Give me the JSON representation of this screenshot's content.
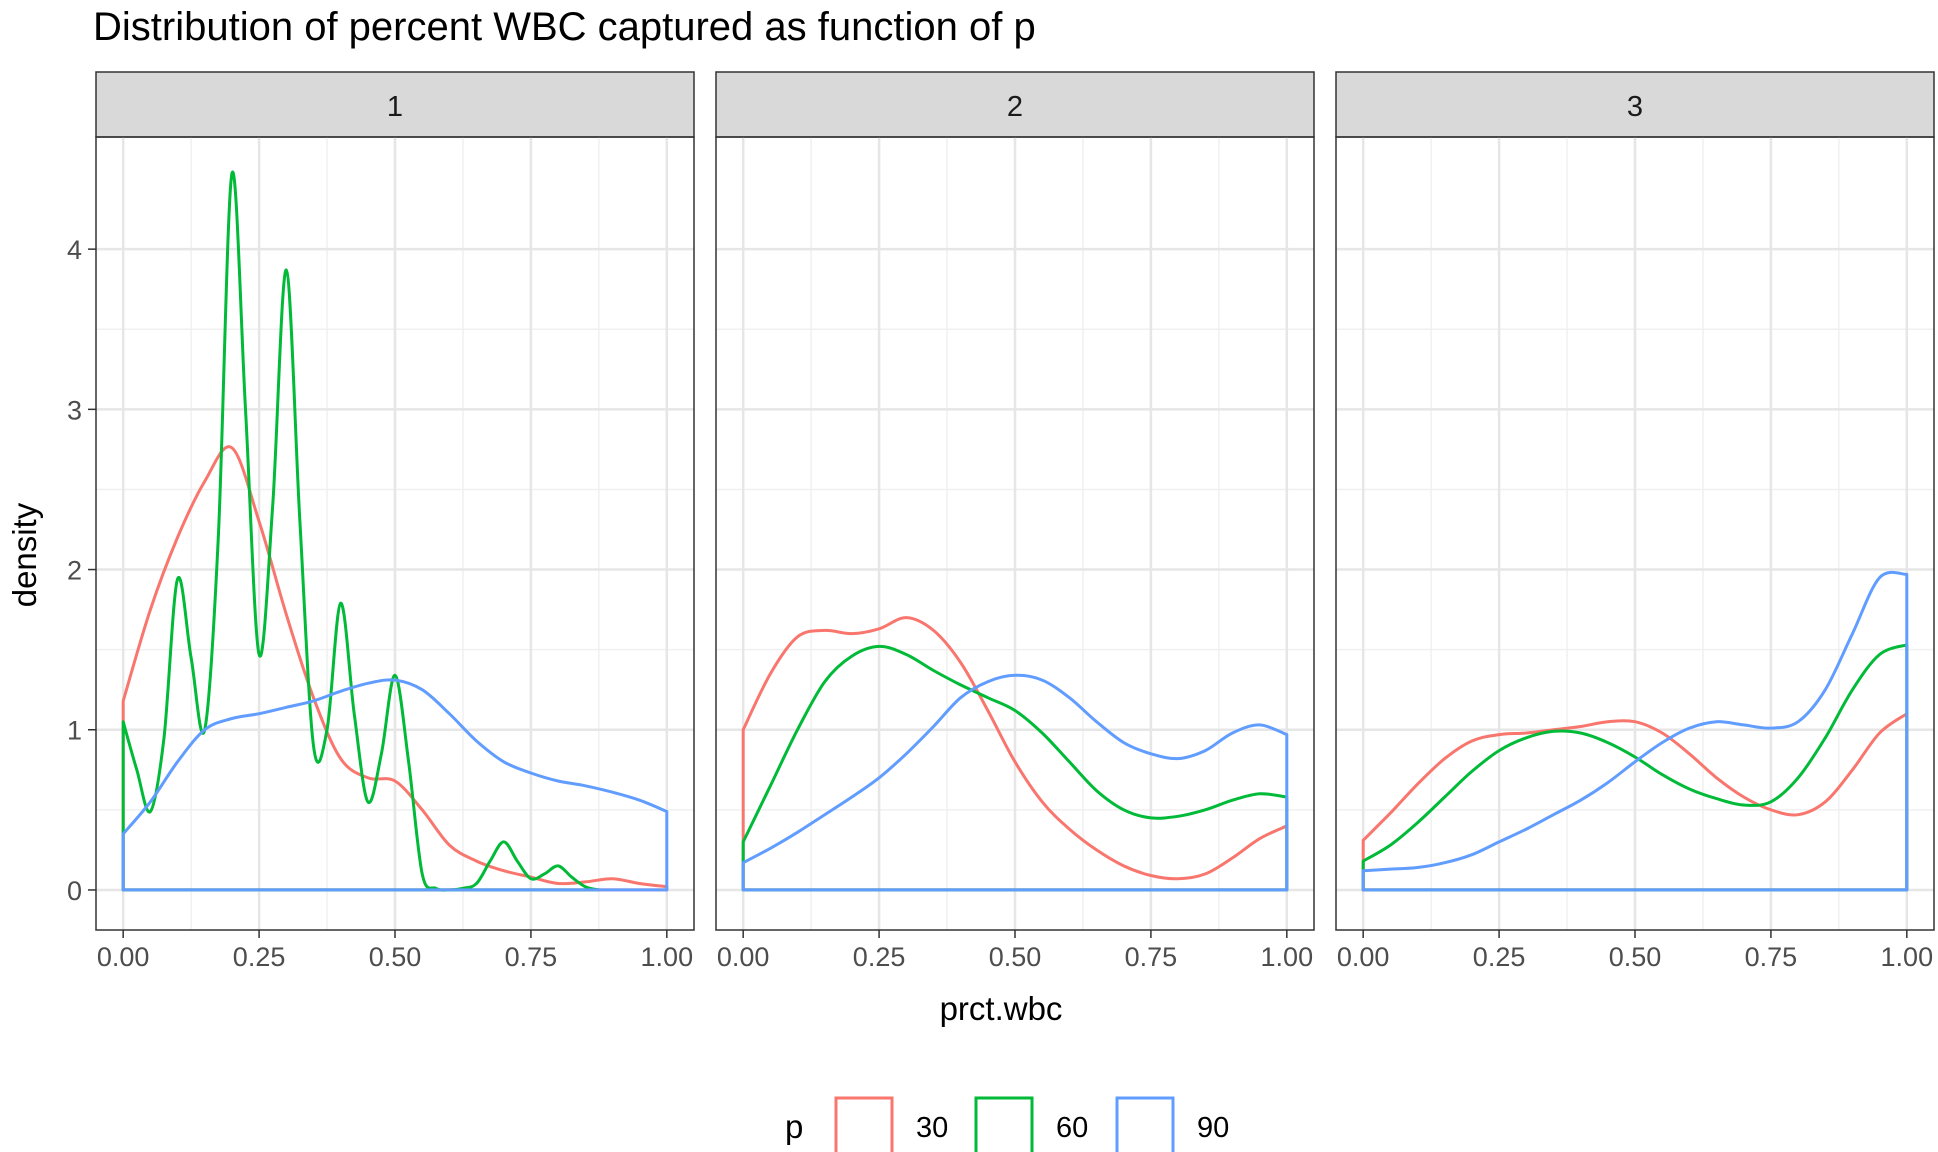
{
  "chart_data": {
    "type": "line",
    "title": "Distribution of percent WBC captured as function of p",
    "xlabel": "prct.wbc",
    "ylabel": "density",
    "xlim": [
      -0.05,
      1.05
    ],
    "ylim": [
      -0.25,
      4.7
    ],
    "x_ticks": [
      0,
      0.25,
      0.5,
      0.75,
      1
    ],
    "x_tick_labels": [
      "0.00",
      "0.25",
      "0.50",
      "0.75",
      "1.00"
    ],
    "y_ticks": [
      0,
      1,
      2,
      3,
      4
    ],
    "y_tick_labels": [
      "0",
      "1",
      "2",
      "3",
      "4"
    ],
    "grid": true,
    "legend": {
      "title": "p",
      "position": "bottom"
    },
    "facets": [
      {
        "label": "1",
        "series": [
          {
            "name": "30",
            "color": "#F8766D",
            "x": [
              0,
              0.05,
              0.1,
              0.15,
              0.2,
              0.25,
              0.3,
              0.35,
              0.4,
              0.45,
              0.5,
              0.55,
              0.6,
              0.65,
              0.7,
              0.75,
              0.8,
              0.85,
              0.9,
              0.95,
              1.0
            ],
            "y": [
              1.18,
              1.75,
              2.2,
              2.55,
              2.76,
              2.3,
              1.72,
              1.2,
              0.82,
              0.7,
              0.68,
              0.5,
              0.28,
              0.18,
              0.12,
              0.08,
              0.04,
              0.05,
              0.07,
              0.04,
              0.02
            ]
          },
          {
            "name": "60",
            "color": "#00BA38",
            "x": [
              0,
              0.025,
              0.05,
              0.075,
              0.1,
              0.125,
              0.15,
              0.175,
              0.2,
              0.225,
              0.25,
              0.275,
              0.3,
              0.325,
              0.35,
              0.375,
              0.4,
              0.425,
              0.45,
              0.475,
              0.5,
              0.525,
              0.55,
              0.575,
              0.6,
              0.625,
              0.65,
              0.675,
              0.7,
              0.725,
              0.75,
              0.775,
              0.8,
              0.825,
              0.85,
              0.875
            ],
            "y": [
              1.05,
              0.75,
              0.49,
              0.95,
              1.94,
              1.45,
              1.0,
              2.2,
              4.47,
              3.0,
              1.47,
              2.4,
              3.87,
              2.3,
              0.9,
              1.0,
              1.79,
              1.1,
              0.55,
              0.85,
              1.34,
              0.8,
              0.1,
              0.01,
              0.0,
              0.01,
              0.04,
              0.18,
              0.3,
              0.18,
              0.07,
              0.1,
              0.15,
              0.08,
              0.02,
              0.0
            ]
          },
          {
            "name": "90",
            "color": "#619CFF",
            "x": [
              0,
              0.05,
              0.1,
              0.15,
              0.2,
              0.25,
              0.3,
              0.35,
              0.4,
              0.45,
              0.5,
              0.55,
              0.6,
              0.65,
              0.7,
              0.75,
              0.8,
              0.85,
              0.9,
              0.95,
              1.0
            ],
            "y": [
              0.35,
              0.55,
              0.8,
              1.0,
              1.07,
              1.1,
              1.14,
              1.18,
              1.24,
              1.29,
              1.31,
              1.25,
              1.1,
              0.93,
              0.8,
              0.73,
              0.68,
              0.65,
              0.61,
              0.56,
              0.49
            ]
          }
        ]
      },
      {
        "label": "2",
        "series": [
          {
            "name": "30",
            "color": "#F8766D",
            "x": [
              0,
              0.05,
              0.1,
              0.15,
              0.2,
              0.25,
              0.3,
              0.35,
              0.4,
              0.45,
              0.5,
              0.55,
              0.6,
              0.65,
              0.7,
              0.75,
              0.8,
              0.85,
              0.9,
              0.95,
              1.0
            ],
            "y": [
              1.0,
              1.35,
              1.58,
              1.62,
              1.6,
              1.63,
              1.7,
              1.62,
              1.42,
              1.12,
              0.8,
              0.55,
              0.38,
              0.25,
              0.15,
              0.09,
              0.07,
              0.1,
              0.2,
              0.32,
              0.4
            ]
          },
          {
            "name": "60",
            "color": "#00BA38",
            "x": [
              0,
              0.05,
              0.1,
              0.15,
              0.2,
              0.25,
              0.3,
              0.35,
              0.4,
              0.45,
              0.5,
              0.55,
              0.6,
              0.65,
              0.7,
              0.75,
              0.8,
              0.85,
              0.9,
              0.95,
              1.0
            ],
            "y": [
              0.3,
              0.65,
              1.0,
              1.3,
              1.46,
              1.52,
              1.47,
              1.37,
              1.28,
              1.2,
              1.12,
              0.98,
              0.8,
              0.62,
              0.5,
              0.45,
              0.46,
              0.5,
              0.56,
              0.6,
              0.58
            ]
          },
          {
            "name": "90",
            "color": "#619CFF",
            "x": [
              0,
              0.05,
              0.1,
              0.15,
              0.2,
              0.25,
              0.3,
              0.35,
              0.4,
              0.45,
              0.5,
              0.55,
              0.6,
              0.65,
              0.7,
              0.75,
              0.8,
              0.85,
              0.9,
              0.95,
              1.0
            ],
            "y": [
              0.17,
              0.26,
              0.36,
              0.47,
              0.58,
              0.7,
              0.85,
              1.02,
              1.2,
              1.3,
              1.34,
              1.31,
              1.2,
              1.05,
              0.92,
              0.85,
              0.82,
              0.87,
              0.98,
              1.03,
              0.97
            ]
          }
        ]
      },
      {
        "label": "3",
        "series": [
          {
            "name": "30",
            "color": "#F8766D",
            "x": [
              0,
              0.05,
              0.1,
              0.15,
              0.2,
              0.25,
              0.3,
              0.35,
              0.4,
              0.45,
              0.5,
              0.55,
              0.6,
              0.65,
              0.7,
              0.75,
              0.8,
              0.85,
              0.9,
              0.95,
              1.0
            ],
            "y": [
              0.31,
              0.48,
              0.66,
              0.82,
              0.93,
              0.97,
              0.98,
              1.0,
              1.02,
              1.05,
              1.05,
              0.98,
              0.85,
              0.7,
              0.58,
              0.5,
              0.47,
              0.55,
              0.75,
              0.98,
              1.1
            ]
          },
          {
            "name": "60",
            "color": "#00BA38",
            "x": [
              0,
              0.05,
              0.1,
              0.15,
              0.2,
              0.25,
              0.3,
              0.35,
              0.4,
              0.45,
              0.5,
              0.55,
              0.6,
              0.65,
              0.7,
              0.75,
              0.8,
              0.85,
              0.9,
              0.95,
              1.0
            ],
            "y": [
              0.18,
              0.28,
              0.42,
              0.58,
              0.74,
              0.87,
              0.95,
              0.99,
              0.98,
              0.92,
              0.83,
              0.72,
              0.63,
              0.57,
              0.53,
              0.55,
              0.7,
              0.95,
              1.25,
              1.47,
              1.53
            ]
          },
          {
            "name": "90",
            "color": "#619CFF",
            "x": [
              0,
              0.05,
              0.1,
              0.15,
              0.2,
              0.25,
              0.3,
              0.35,
              0.4,
              0.45,
              0.5,
              0.55,
              0.6,
              0.65,
              0.7,
              0.75,
              0.8,
              0.85,
              0.9,
              0.95,
              1.0
            ],
            "y": [
              0.12,
              0.13,
              0.14,
              0.17,
              0.22,
              0.3,
              0.38,
              0.47,
              0.56,
              0.67,
              0.8,
              0.92,
              1.01,
              1.05,
              1.03,
              1.01,
              1.05,
              1.25,
              1.6,
              1.95,
              1.97
            ]
          }
        ]
      }
    ]
  }
}
